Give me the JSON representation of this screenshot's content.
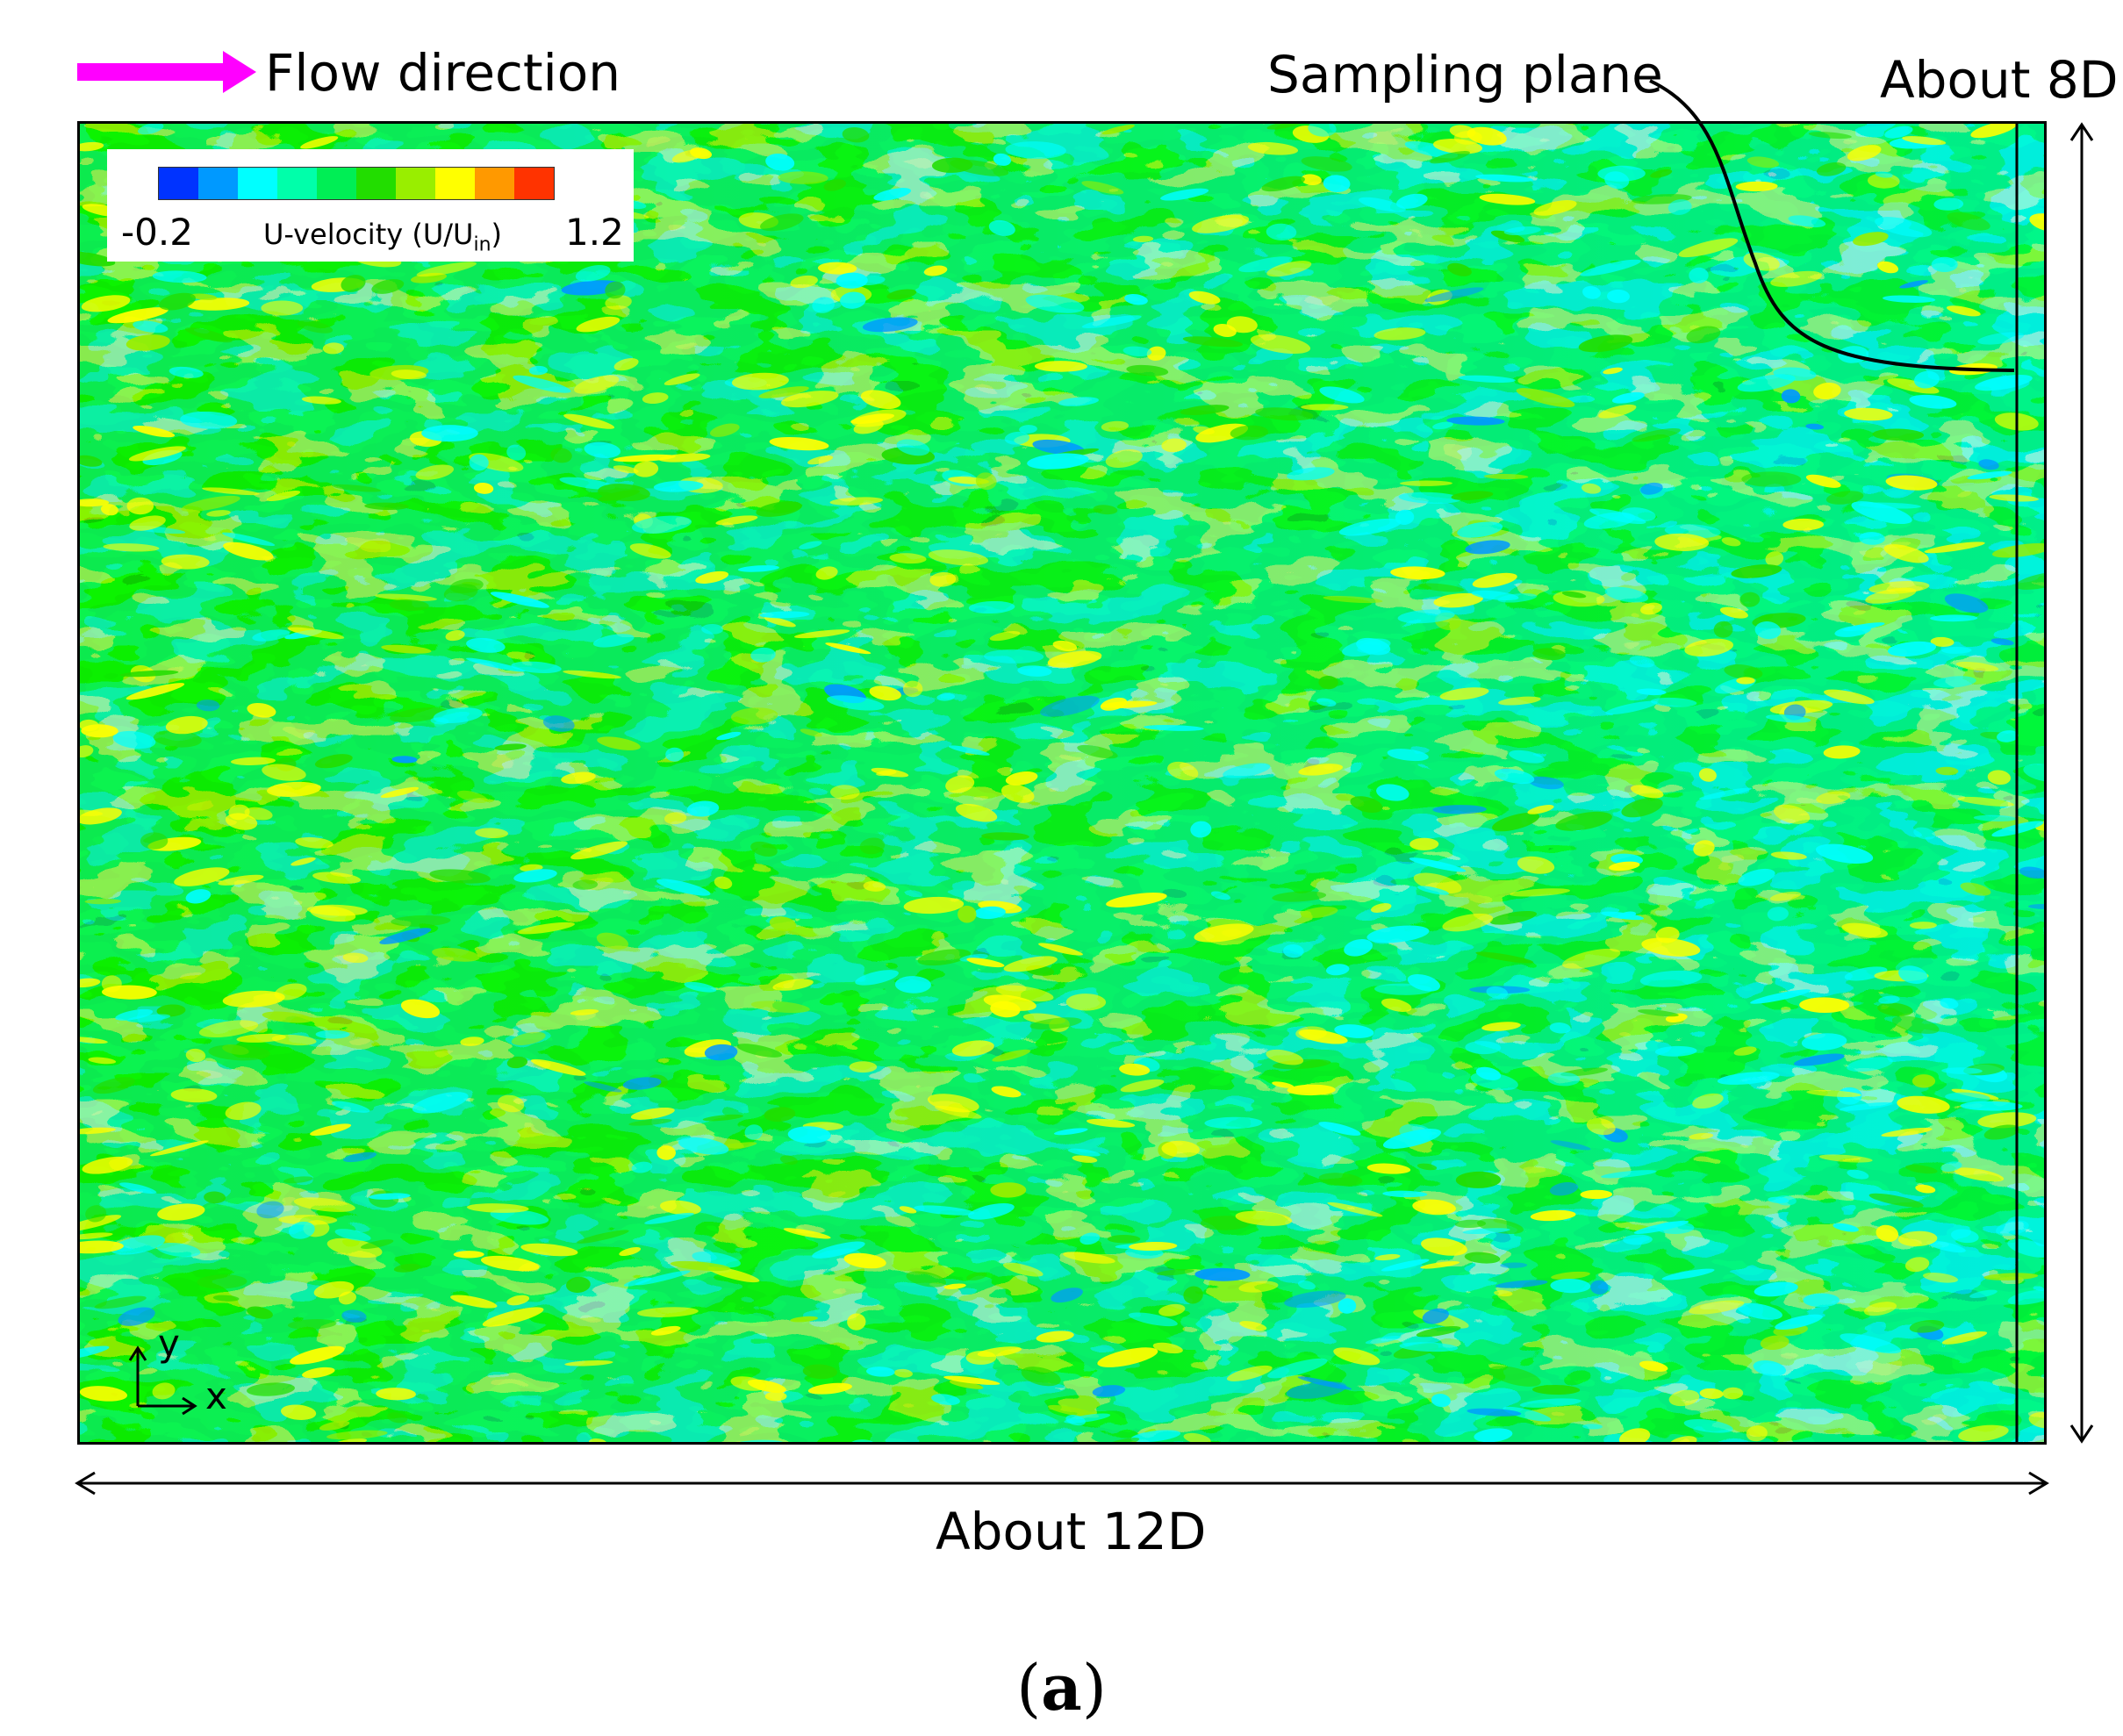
{
  "flow": {
    "label": "Flow direction",
    "arrow_color": "#ff00ff"
  },
  "sampling": {
    "label": "Sampling plane"
  },
  "height_label": "About 8D",
  "width_label": "About 12D",
  "legend": {
    "min": "-0.2",
    "max": "1.2",
    "title_main": "U-velocity (U/U",
    "title_sub": "in",
    "title_end": ")",
    "colors": [
      "#0033ff",
      "#0099ff",
      "#00ffff",
      "#00ffaa",
      "#00ee55",
      "#22dd00",
      "#99ee00",
      "#ffff00",
      "#ff9900",
      "#ff3300"
    ]
  },
  "axes": {
    "x": "x",
    "y": "y"
  },
  "caption": {
    "open": "(",
    "letter": "a",
    "close": ")"
  }
}
